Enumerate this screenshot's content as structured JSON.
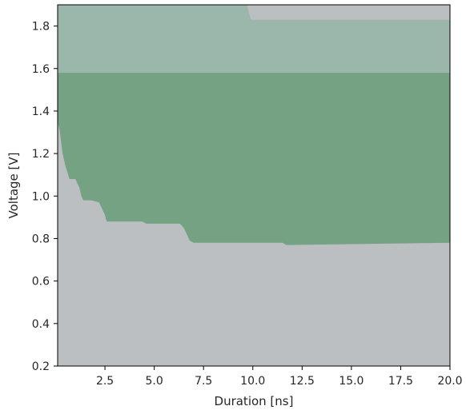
{
  "chart_data": {
    "type": "area",
    "title": "",
    "xlabel": "Duration [ns]",
    "ylabel": "Voltage [V]",
    "xlim": [
      0.1,
      20.0
    ],
    "ylim": [
      0.2,
      1.9
    ],
    "grid": false,
    "legend": "none",
    "xticks": [
      2.5,
      5.0,
      7.5,
      10.0,
      12.5,
      15.0,
      17.5,
      20.0
    ],
    "xtick_labels": [
      "2.5",
      "5.0",
      "7.5",
      "10.0",
      "12.5",
      "15.0",
      "17.5",
      "20.0"
    ],
    "yticks": [
      0.2,
      0.4,
      0.6,
      0.8,
      1.0,
      1.2,
      1.4,
      1.6,
      1.8
    ],
    "ytick_labels": [
      "0.2",
      "0.4",
      "0.6",
      "0.8",
      "1.0",
      "1.2",
      "1.4",
      "1.6",
      "1.8"
    ],
    "colors": {
      "background_region": "#bcbfc1",
      "upper_region": "#9bb7ac",
      "success_region": "#74a283",
      "top_right_region": "#bcbfc1"
    },
    "regions": [
      {
        "name": "upper-region",
        "kind": "band",
        "y_low": 1.58,
        "y_high": 1.9
      },
      {
        "name": "success-region",
        "kind": "lower-boundary",
        "y_high": 1.58,
        "boundary_x": [
          0.1,
          0.2,
          0.35,
          0.5,
          0.6,
          0.7,
          1.0,
          1.1,
          1.2,
          1.25,
          1.3,
          1.4,
          1.5,
          1.8,
          2.2,
          2.3,
          2.4,
          2.5,
          2.55,
          2.6,
          3.5,
          4.4,
          4.6,
          6.3,
          6.5,
          6.6,
          6.7,
          6.8,
          7.0,
          9.0,
          9.2,
          9.3,
          10.0,
          11.5,
          11.7,
          12.0,
          20.0
        ],
        "boundary_y": [
          1.35,
          1.31,
          1.2,
          1.14,
          1.11,
          1.08,
          1.08,
          1.06,
          1.04,
          1.02,
          1.0,
          0.98,
          0.98,
          0.98,
          0.97,
          0.95,
          0.93,
          0.91,
          0.89,
          0.88,
          0.88,
          0.88,
          0.87,
          0.87,
          0.85,
          0.83,
          0.81,
          0.79,
          0.78,
          0.78,
          0.78,
          0.78,
          0.78,
          0.78,
          0.77,
          0.77,
          0.78
        ]
      },
      {
        "name": "top-right-region",
        "kind": "step-top",
        "x_start": 9.7,
        "x_step": 9.9,
        "y_top": 1.9,
        "y_step": 1.83
      }
    ]
  }
}
